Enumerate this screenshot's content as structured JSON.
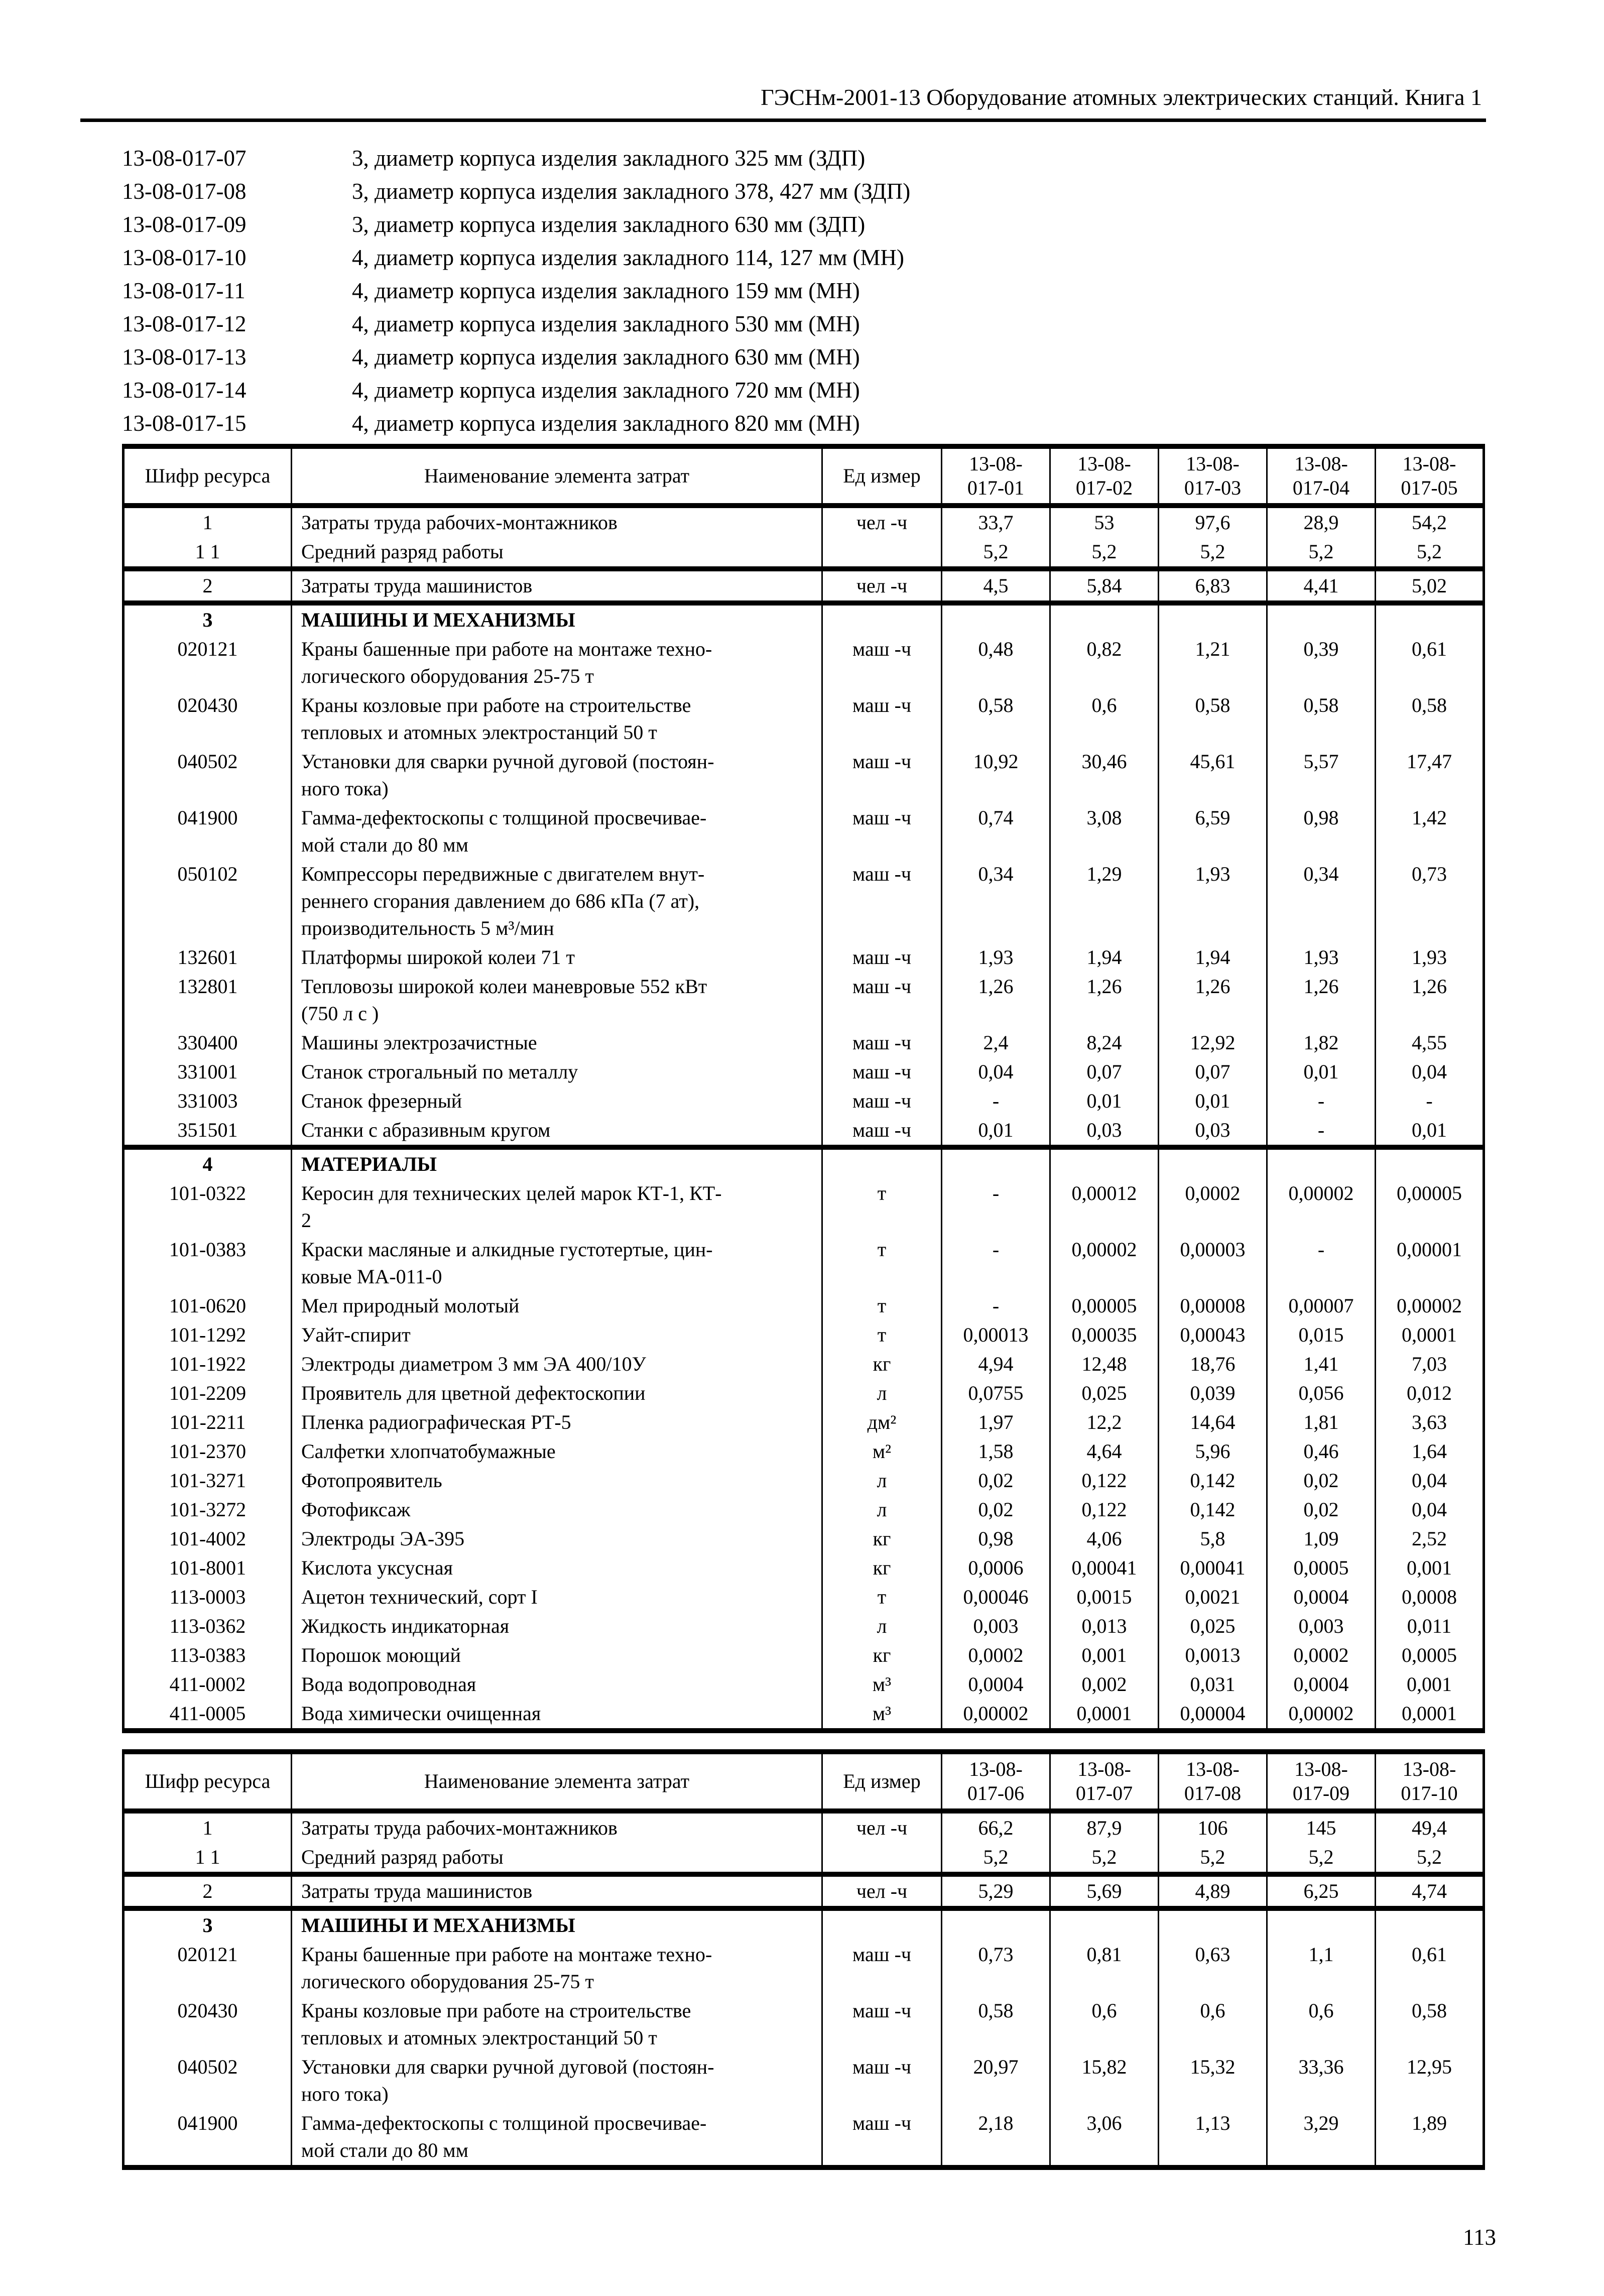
{
  "page": {
    "header_title": "ГЭСНм-2001-13 Оборудование атомных электрических станций. Книга 1",
    "page_number": "113"
  },
  "norms_list": [
    {
      "code": "13-08-017-07",
      "description": "3, диаметр корпуса изделия закладного 325 мм (ЗДП)"
    },
    {
      "code": "13-08-017-08",
      "description": "3, диаметр корпуса изделия закладного 378, 427 мм (ЗДП)"
    },
    {
      "code": "13-08-017-09",
      "description": "3, диаметр корпуса изделия закладного 630 мм (ЗДП)"
    },
    {
      "code": "13-08-017-10",
      "description": "4, диаметр корпуса изделия закладного 114, 127 мм (МН)"
    },
    {
      "code": "13-08-017-11",
      "description": "4, диаметр корпуса изделия закладного 159 мм (МН)"
    },
    {
      "code": "13-08-017-12",
      "description": "4, диаметр корпуса изделия закладного 530 мм (МН)"
    },
    {
      "code": "13-08-017-13",
      "description": "4, диаметр корпуса изделия закладного 630 мм (МН)"
    },
    {
      "code": "13-08-017-14",
      "description": "4, диаметр корпуса изделия закладного 720 мм (МН)"
    },
    {
      "code": "13-08-017-15",
      "description": "4, диаметр корпуса изделия закладного 820 мм (МН)"
    }
  ],
  "tables": [
    {
      "header": {
        "resource_code": "Шифр ресурса",
        "name": "Наименование элемента затрат",
        "unit": "Ед  измер"
      },
      "columns": [
        "13-08-\n017-01",
        "13-08-\n017-02",
        "13-08-\n017-03",
        "13-08-\n017-04",
        "13-08-\n017-05"
      ],
      "sections": [
        {
          "rows": [
            {
              "code": "1",
              "name": "Затраты труда рабочих-монтажников",
              "unit": "чел -ч",
              "values": [
                "33,7",
                "53",
                "97,6",
                "28,9",
                "54,2"
              ]
            },
            {
              "code": "1 1",
              "name": "Средний разряд работы",
              "unit": "",
              "values": [
                "5,2",
                "5,2",
                "5,2",
                "5,2",
                "5,2"
              ]
            }
          ]
        },
        {
          "rows": [
            {
              "code": "2",
              "name": "Затраты труда машинистов",
              "unit": "чел -ч",
              "values": [
                "4,5",
                "5,84",
                "6,83",
                "4,41",
                "5,02"
              ]
            }
          ]
        },
        {
          "rows": [
            {
              "code": "3",
              "name": "МАШИНЫ И МЕХАНИЗМЫ",
              "bold": true,
              "unit": "",
              "values": [
                "",
                "",
                "",
                "",
                ""
              ]
            },
            {
              "code": "020121",
              "name": "Краны башенные при работе на монтаже техно-\nлогического оборудования 25-75 т",
              "unit": "маш -ч",
              "values": [
                "0,48",
                "0,82",
                "1,21",
                "0,39",
                "0,61"
              ]
            },
            {
              "code": "020430",
              "name": "Краны козловые при работе на строительстве\nтепловых и атомных электростанций 50 т",
              "unit": "маш -ч",
              "values": [
                "0,58",
                "0,6",
                "0,58",
                "0,58",
                "0,58"
              ]
            },
            {
              "code": "040502",
              "name": "Установки для сварки ручной дуговой (постоян-\nного тока)",
              "unit": "маш -ч",
              "values": [
                "10,92",
                "30,46",
                "45,61",
                "5,57",
                "17,47"
              ]
            },
            {
              "code": "041900",
              "name": "Гамма-дефектоскопы с толщиной просвечивае-\nмой стали до 80 мм",
              "unit": "маш -ч",
              "values": [
                "0,74",
                "3,08",
                "6,59",
                "0,98",
                "1,42"
              ]
            },
            {
              "code": "050102",
              "name": "Компрессоры передвижные с двигателем внут-\nреннего сгорания давлением до 686 кПа (7 ат),\nпроизводительность 5 м³/мин",
              "unit": "маш -ч",
              "values": [
                "0,34",
                "1,29",
                "1,93",
                "0,34",
                "0,73"
              ]
            },
            {
              "code": "132601",
              "name": "Платформы широкой колеи 71 т",
              "unit": "маш -ч",
              "values": [
                "1,93",
                "1,94",
                "1,94",
                "1,93",
                "1,93"
              ]
            },
            {
              "code": "132801",
              "name": "Тепловозы широкой колеи маневровые 552 кВт\n(750 л с )",
              "unit": "маш -ч",
              "values": [
                "1,26",
                "1,26",
                "1,26",
                "1,26",
                "1,26"
              ]
            },
            {
              "code": "330400",
              "name": "Машины электрозачистные",
              "unit": "маш -ч",
              "values": [
                "2,4",
                "8,24",
                "12,92",
                "1,82",
                "4,55"
              ]
            },
            {
              "code": "331001",
              "name": "Станок строгальный по металлу",
              "unit": "маш -ч",
              "values": [
                "0,04",
                "0,07",
                "0,07",
                "0,01",
                "0,04"
              ]
            },
            {
              "code": "331003",
              "name": "Станок фрезерный",
              "unit": "маш -ч",
              "values": [
                "-",
                "0,01",
                "0,01",
                "-",
                "-"
              ]
            },
            {
              "code": "351501",
              "name": "Станки с абразивным кругом",
              "unit": "маш -ч",
              "values": [
                "0,01",
                "0,03",
                "0,03",
                "-",
                "0,01"
              ]
            }
          ]
        },
        {
          "rows": [
            {
              "code": "4",
              "name": "МАТЕРИАЛЫ",
              "bold": true,
              "unit": "",
              "values": [
                "",
                "",
                "",
                "",
                ""
              ]
            },
            {
              "code": "101-0322",
              "name": "Керосин для технических целей марок КТ-1, КТ-\n2",
              "unit": "т",
              "values": [
                "-",
                "0,00012",
                "0,0002",
                "0,00002",
                "0,00005"
              ]
            },
            {
              "code": "101-0383",
              "name": "Краски масляные и алкидные густотертые, цин-\nковые МА-011-0",
              "unit": "т",
              "values": [
                "-",
                "0,00002",
                "0,00003",
                "-",
                "0,00001"
              ]
            },
            {
              "code": "101-0620",
              "name": "Мел природный молотый",
              "unit": "т",
              "values": [
                "-",
                "0,00005",
                "0,00008",
                "0,00007",
                "0,00002"
              ]
            },
            {
              "code": "101-1292",
              "name": "Уайт-спирит",
              "unit": "т",
              "values": [
                "0,00013",
                "0,00035",
                "0,00043",
                "0,015",
                "0,0001"
              ]
            },
            {
              "code": "101-1922",
              "name": "Электроды диаметром 3 мм ЭА 400/10У",
              "unit": "кг",
              "values": [
                "4,94",
                "12,48",
                "18,76",
                "1,41",
                "7,03"
              ]
            },
            {
              "code": "101-2209",
              "name": "Проявитель для цветной дефектоскопии",
              "unit": "л",
              "values": [
                "0,0755",
                "0,025",
                "0,039",
                "0,056",
                "0,012"
              ]
            },
            {
              "code": "101-2211",
              "name": "Пленка радиографическая РТ-5",
              "unit": "дм²",
              "values": [
                "1,97",
                "12,2",
                "14,64",
                "1,81",
                "3,63"
              ]
            },
            {
              "code": "101-2370",
              "name": "Салфетки хлопчатобумажные",
              "unit": "м²",
              "values": [
                "1,58",
                "4,64",
                "5,96",
                "0,46",
                "1,64"
              ]
            },
            {
              "code": "101-3271",
              "name": "Фотопроявитель",
              "unit": "л",
              "values": [
                "0,02",
                "0,122",
                "0,142",
                "0,02",
                "0,04"
              ]
            },
            {
              "code": "101-3272",
              "name": "Фотофиксаж",
              "unit": "л",
              "values": [
                "0,02",
                "0,122",
                "0,142",
                "0,02",
                "0,04"
              ]
            },
            {
              "code": "101-4002",
              "name": "Электроды ЭА-395",
              "unit": "кг",
              "values": [
                "0,98",
                "4,06",
                "5,8",
                "1,09",
                "2,52"
              ]
            },
            {
              "code": "101-8001",
              "name": "Кислота уксусная",
              "unit": "кг",
              "values": [
                "0,0006",
                "0,00041",
                "0,00041",
                "0,0005",
                "0,001"
              ]
            },
            {
              "code": "113-0003",
              "name": "Ацетон технический, сорт I",
              "unit": "т",
              "values": [
                "0,00046",
                "0,0015",
                "0,0021",
                "0,0004",
                "0,0008"
              ]
            },
            {
              "code": "113-0362",
              "name": "Жидкость индикаторная",
              "unit": "л",
              "values": [
                "0,003",
                "0,013",
                "0,025",
                "0,003",
                "0,011"
              ]
            },
            {
              "code": "113-0383",
              "name": "Порошок моющий",
              "unit": "кг",
              "values": [
                "0,0002",
                "0,001",
                "0,0013",
                "0,0002",
                "0,0005"
              ]
            },
            {
              "code": "411-0002",
              "name": "Вода водопроводная",
              "unit": "м³",
              "values": [
                "0,0004",
                "0,002",
                "0,031",
                "0,0004",
                "0,001"
              ]
            },
            {
              "code": "411-0005",
              "name": "Вода химически очищенная",
              "unit": "м³",
              "values": [
                "0,00002",
                "0,0001",
                "0,00004",
                "0,00002",
                "0,0001"
              ]
            }
          ]
        }
      ]
    },
    {
      "header": {
        "resource_code": "Шифр ресурса",
        "name": "Наименование элемента затрат",
        "unit": "Ед  измер"
      },
      "columns": [
        "13-08-\n017-06",
        "13-08-\n017-07",
        "13-08-\n017-08",
        "13-08-\n017-09",
        "13-08-\n017-10"
      ],
      "sections": [
        {
          "rows": [
            {
              "code": "1",
              "name": "Затраты труда рабочих-монтажников",
              "unit": "чел -ч",
              "values": [
                "66,2",
                "87,9",
                "106",
                "145",
                "49,4"
              ]
            },
            {
              "code": "1 1",
              "name": "Средний разряд работы",
              "unit": "",
              "values": [
                "5,2",
                "5,2",
                "5,2",
                "5,2",
                "5,2"
              ]
            }
          ]
        },
        {
          "rows": [
            {
              "code": "2",
              "name": "Затраты труда машинистов",
              "unit": "чел -ч",
              "values": [
                "5,29",
                "5,69",
                "4,89",
                "6,25",
                "4,74"
              ]
            }
          ]
        },
        {
          "rows": [
            {
              "code": "3",
              "name": "МАШИНЫ И МЕХАНИЗМЫ",
              "bold": true,
              "unit": "",
              "values": [
                "",
                "",
                "",
                "",
                ""
              ]
            },
            {
              "code": "020121",
              "name": "Краны башенные при работе на монтаже техно-\nлогического оборудования 25-75 т",
              "unit": "маш -ч",
              "values": [
                "0,73",
                "0,81",
                "0,63",
                "1,1",
                "0,61"
              ]
            },
            {
              "code": "020430",
              "name": "Краны козловые при работе на строительстве\nтепловых и атомных электростанций 50 т",
              "unit": "маш -ч",
              "values": [
                "0,58",
                "0,6",
                "0,6",
                "0,6",
                "0,58"
              ]
            },
            {
              "code": "040502",
              "name": "Установки для сварки ручной дуговой (постоян-\nного тока)",
              "unit": "маш -ч",
              "values": [
                "20,97",
                "15,82",
                "15,32",
                "33,36",
                "12,95"
              ]
            },
            {
              "code": "041900",
              "name": "Гамма-дефектоскопы с толщиной просвечивае-\nмой стали до 80 мм",
              "unit": "маш -ч",
              "values": [
                "2,18",
                "3,06",
                "1,13",
                "3,29",
                "1,89"
              ]
            }
          ]
        }
      ]
    }
  ]
}
